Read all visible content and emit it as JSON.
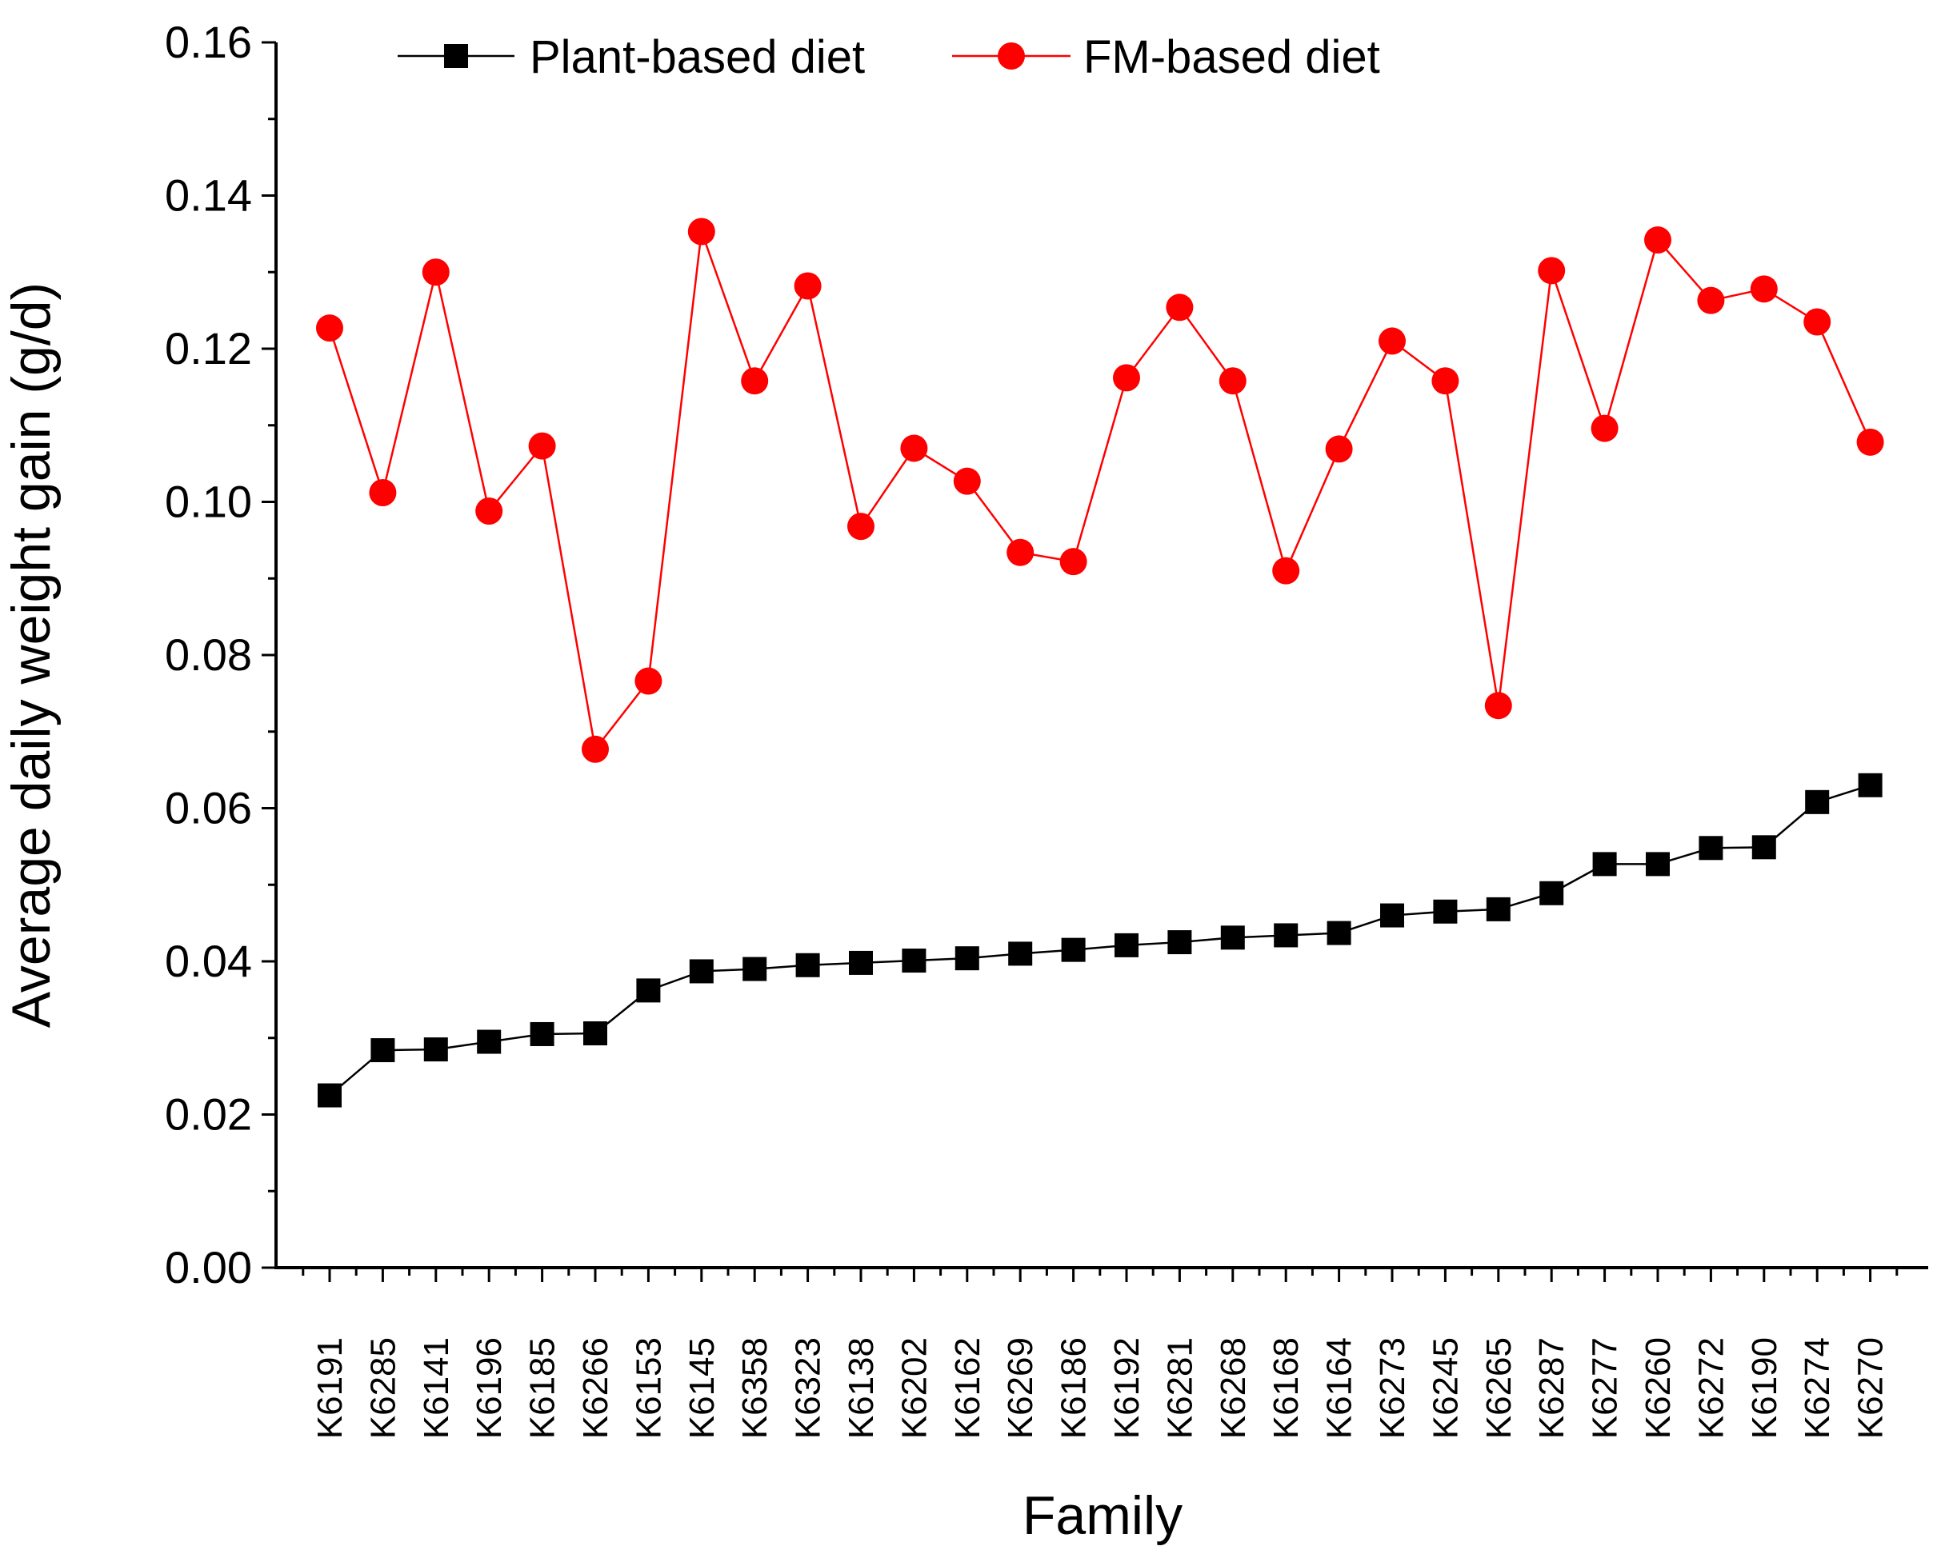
{
  "chart_data": {
    "type": "line",
    "xlabel": "Family",
    "ylabel": "Average daily weight gain (g/d)",
    "ylim": [
      0.0,
      0.16
    ],
    "y_ticks": [
      "0.00",
      "0.02",
      "0.04",
      "0.06",
      "0.08",
      "0.10",
      "0.12",
      "0.14",
      "0.16"
    ],
    "grid": false,
    "legend_position": "top",
    "categories": [
      "K6191",
      "K6285",
      "K6141",
      "K6196",
      "K6185",
      "K6266",
      "K6153",
      "K6145",
      "K6358",
      "K6323",
      "K6138",
      "K6202",
      "K6162",
      "K6269",
      "K6186",
      "K6192",
      "K6281",
      "K6268",
      "K6168",
      "K6164",
      "K6273",
      "K6245",
      "K6265",
      "K6287",
      "K6277",
      "K6260",
      "K6272",
      "K6190",
      "K6274",
      "K6270"
    ],
    "series": [
      {
        "name": "Plant-based diet",
        "color": "#000000",
        "marker": "square",
        "values": [
          0.0225,
          0.0284,
          0.0285,
          0.0295,
          0.0305,
          0.0306,
          0.0362,
          0.0387,
          0.039,
          0.0395,
          0.0398,
          0.0401,
          0.0404,
          0.041,
          0.0415,
          0.0421,
          0.0425,
          0.0431,
          0.0434,
          0.0437,
          0.046,
          0.0465,
          0.0468,
          0.0489,
          0.0527,
          0.0527,
          0.0548,
          0.0549,
          0.0608,
          0.063
        ]
      },
      {
        "name": "FM-based diet",
        "color": "#ff0000",
        "marker": "circle",
        "values": [
          0.1227,
          0.1012,
          0.13,
          0.0988,
          0.1073,
          0.0677,
          0.0766,
          0.1353,
          0.1158,
          0.1282,
          0.0968,
          0.107,
          0.1027,
          0.0934,
          0.0922,
          0.1162,
          0.1254,
          0.1158,
          0.091,
          0.1069,
          0.121,
          0.1158,
          0.0734,
          0.1302,
          0.1096,
          0.1342,
          0.1263,
          0.1278,
          0.1235,
          0.1078
        ]
      }
    ]
  }
}
